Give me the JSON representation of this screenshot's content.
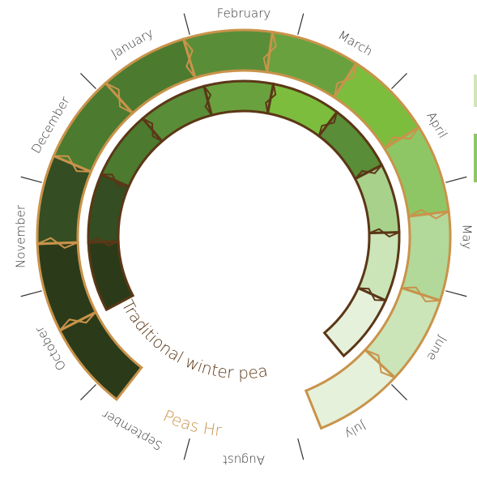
{
  "months": [
    {
      "label": "January"
    },
    {
      "label": "February"
    },
    {
      "label": "March"
    },
    {
      "label": "April"
    },
    {
      "label": "May"
    },
    {
      "label": "June"
    },
    {
      "label": "July"
    },
    {
      "label": "August"
    },
    {
      "label": "September"
    },
    {
      "label": "October"
    },
    {
      "label": "November"
    },
    {
      "label": "December"
    }
  ],
  "rings": {
    "outer": {
      "label": "Peas Hr",
      "stroke_color": "#c9934a",
      "segments": [
        {
          "month": "September",
          "color": "#2b3b1a"
        },
        {
          "month": "October",
          "color": "#2b3b1a"
        },
        {
          "month": "November",
          "color": "#344d22"
        },
        {
          "month": "December",
          "color": "#4c7a2f"
        },
        {
          "month": "January",
          "color": "#4c7a2f"
        },
        {
          "month": "February",
          "color": "#5a8d38"
        },
        {
          "month": "March",
          "color": "#6aa13f"
        },
        {
          "month": "April",
          "color": "#7cbd3e"
        },
        {
          "month": "May",
          "color": "#8fc665"
        },
        {
          "month": "June",
          "color": "#b2d89a"
        },
        {
          "month": "July",
          "color": "#cbe4b8"
        },
        {
          "month": "August",
          "color": "#e6f1dc"
        }
      ]
    },
    "inner": {
      "label": "Traditional winter pea",
      "stroke_color": "#5b3716",
      "segments": [
        {
          "month": "October",
          "color": "#2b3b1a"
        },
        {
          "month": "November",
          "color": "#344d22"
        },
        {
          "month": "December",
          "color": "#4c7a2f"
        },
        {
          "month": "January",
          "color": "#5a8d38"
        },
        {
          "month": "February",
          "color": "#6aa13f"
        },
        {
          "month": "March",
          "color": "#7cbd3e"
        },
        {
          "month": "April",
          "color": "#5a8d38"
        },
        {
          "month": "May",
          "color": "#a8d18c"
        },
        {
          "month": "June",
          "color": "#cbe4b8"
        },
        {
          "month": "July",
          "color": "#e6f1dc"
        }
      ]
    }
  }
}
